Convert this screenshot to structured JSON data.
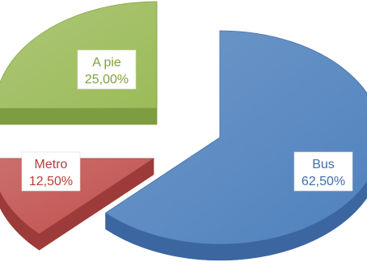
{
  "chart_data": {
    "type": "pie",
    "title": "",
    "style": "3d-exploded",
    "legend": "none",
    "slices": [
      {
        "label": "Bus",
        "value": 62.5,
        "display": "62,50%",
        "color": "#4f81bd",
        "side_color": "#3b66a0",
        "label_color": "#3f6fa8"
      },
      {
        "label": "Metro",
        "value": 12.5,
        "display": "12,50%",
        "color": "#c0504d",
        "side_color": "#9c3b39",
        "label_color": "#b0403d"
      },
      {
        "label": "A pie",
        "value": 25.0,
        "display": "25,00%",
        "color": "#9bbb59",
        "side_color": "#7e9c41",
        "label_color": "#7f9f3a"
      }
    ]
  }
}
